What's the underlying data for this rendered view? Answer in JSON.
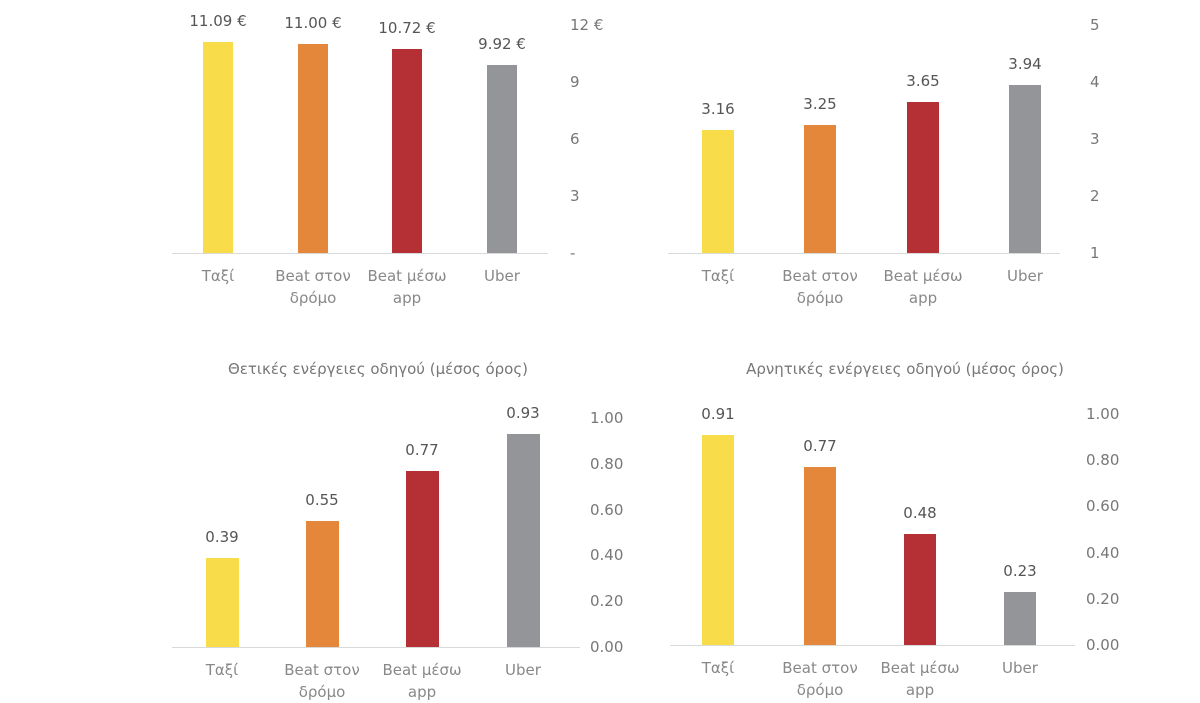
{
  "colors": [
    "#F9DC4A",
    "#E5873A",
    "#B53034",
    "#939598"
  ],
  "chart_data": [
    {
      "type": "bar",
      "title": "",
      "categories": [
        "Ταξί",
        "Beat στον\nδρόμο",
        "Beat μέσω\napp",
        "Uber"
      ],
      "values": [
        11.09,
        11.0,
        10.72,
        9.92
      ],
      "data_labels": [
        "11.09 €",
        "11.00 €",
        "10.72 €",
        "9.92 €"
      ],
      "ylim": [
        0,
        12
      ],
      "ticks": [
        0,
        3,
        6,
        9,
        12
      ],
      "tick_labels": [
        "-",
        "3",
        "6",
        "9",
        "12 €"
      ],
      "y_axis_side": "right",
      "grid": false
    },
    {
      "type": "bar",
      "title": "",
      "categories": [
        "Ταξί",
        "Beat στον\nδρόμο",
        "Beat μέσω\napp",
        "Uber"
      ],
      "values": [
        3.16,
        3.25,
        3.65,
        3.94
      ],
      "data_labels": [
        "3.16",
        "3.25",
        "3.65",
        "3.94"
      ],
      "ylim": [
        1,
        5
      ],
      "ticks": [
        1,
        2,
        3,
        4,
        5
      ],
      "tick_labels": [
        "1",
        "2",
        "3",
        "4",
        "5"
      ],
      "y_axis_side": "right",
      "grid": false
    },
    {
      "type": "bar",
      "title": "Θετικές ενέργειες οδηγού (μέσος όρος)",
      "categories": [
        "Ταξί",
        "Beat στον\nδρόμο",
        "Beat μέσω\napp",
        "Uber"
      ],
      "values": [
        0.39,
        0.55,
        0.77,
        0.93
      ],
      "data_labels": [
        "0.39",
        "0.55",
        "0.77",
        "0.93"
      ],
      "ylim": [
        0,
        1
      ],
      "ticks": [
        0,
        0.2,
        0.4,
        0.6,
        0.8,
        1.0
      ],
      "tick_labels": [
        "0.00",
        "0.20",
        "0.40",
        "0.60",
        "0.80",
        "1.00"
      ],
      "y_axis_side": "right",
      "grid": false
    },
    {
      "type": "bar",
      "title": "Αρνητικές ενέργειες οδηγού (μέσος όρος)",
      "categories": [
        "Ταξί",
        "Beat στον\nδρόμο",
        "Beat μέσω\napp",
        "Uber"
      ],
      "values": [
        0.91,
        0.77,
        0.48,
        0.23
      ],
      "data_labels": [
        "0.91",
        "0.77",
        "0.48",
        "0.23"
      ],
      "ylim": [
        0,
        1
      ],
      "ticks": [
        0,
        0.2,
        0.4,
        0.6,
        0.8,
        1.0
      ],
      "tick_labels": [
        "0.00",
        "0.20",
        "0.40",
        "0.60",
        "0.80",
        "1.00"
      ],
      "y_axis_side": "right",
      "grid": false
    }
  ]
}
